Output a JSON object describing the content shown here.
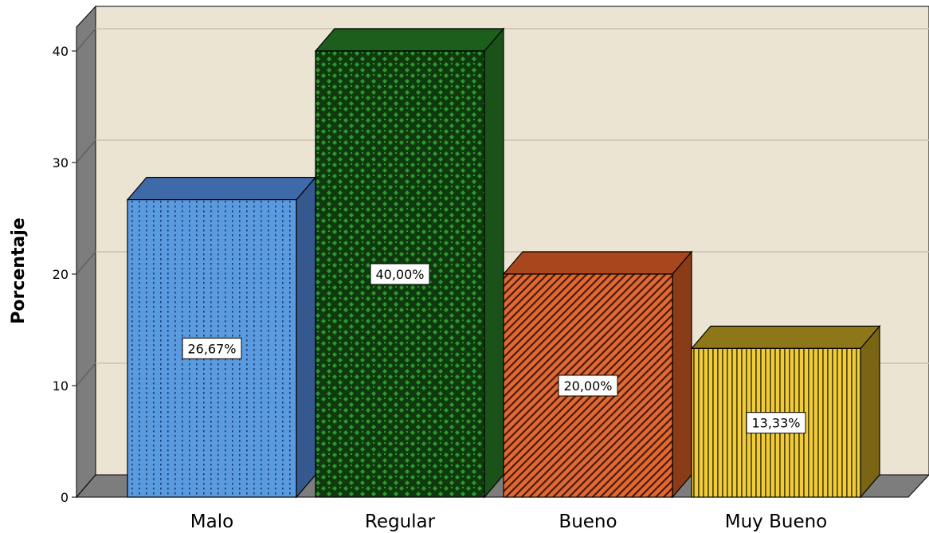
{
  "chart_data": {
    "type": "bar",
    "style": "3d",
    "categories": [
      "Malo",
      "Regular",
      "Bueno",
      "Muy Bueno"
    ],
    "values": [
      26.67,
      40.0,
      20.0,
      13.33
    ],
    "data_labels": [
      "26,67%",
      "40,00%",
      "20,00%",
      "13,33%"
    ],
    "xlabel": "",
    "ylabel": "Porcentaje",
    "ylim": [
      0,
      40
    ],
    "yticks": [
      0,
      10,
      20,
      30,
      40
    ],
    "ytick_labels": [
      "0",
      "10",
      "20",
      "30",
      "40"
    ],
    "grid": true,
    "legend": "none",
    "background_color": "#ece4d2",
    "bar_colors": [
      {
        "front": "#5a9be0",
        "side": "#35598f",
        "top": "#3f6aaa",
        "pattern": "dots-vertical"
      },
      {
        "front": "#1f7a1f",
        "side": "#1a521a",
        "top": "#1c5f1c",
        "pattern": "checker"
      },
      {
        "front": "#e06a35",
        "side": "#8a3b17",
        "top": "#a8461c",
        "pattern": "diagonal"
      },
      {
        "front": "#e8c43a",
        "side": "#7a6515",
        "top": "#8e7718",
        "pattern": "vertical-lines"
      }
    ]
  }
}
